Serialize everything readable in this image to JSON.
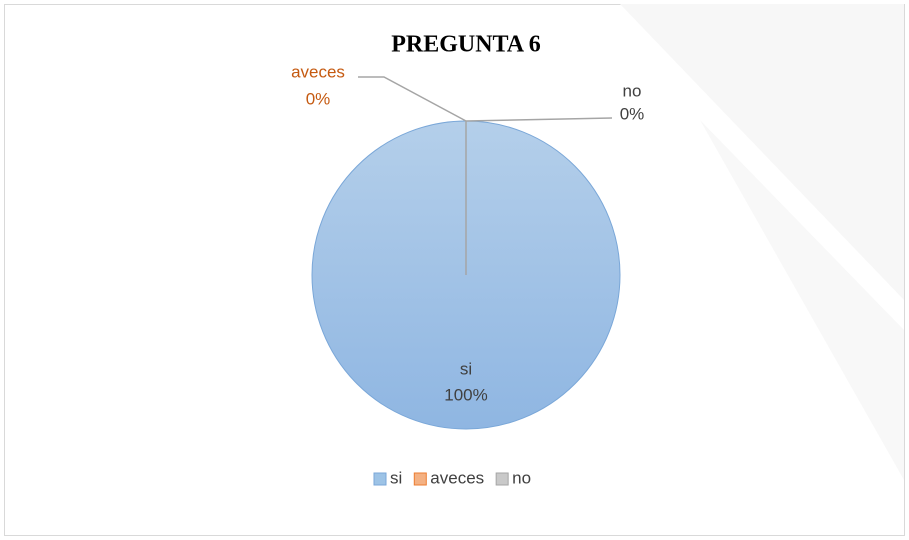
{
  "chart_data": {
    "type": "pie",
    "title": "PREGUNTA 6",
    "categories": [
      "si",
      "aveces",
      "no"
    ],
    "values": [
      100,
      0,
      0
    ],
    "value_labels": [
      "100%",
      "0%",
      "0%"
    ],
    "colors": [
      "#9dc3e6",
      "#f4b183",
      "#c9c9c9"
    ],
    "legend": "bottom"
  }
}
